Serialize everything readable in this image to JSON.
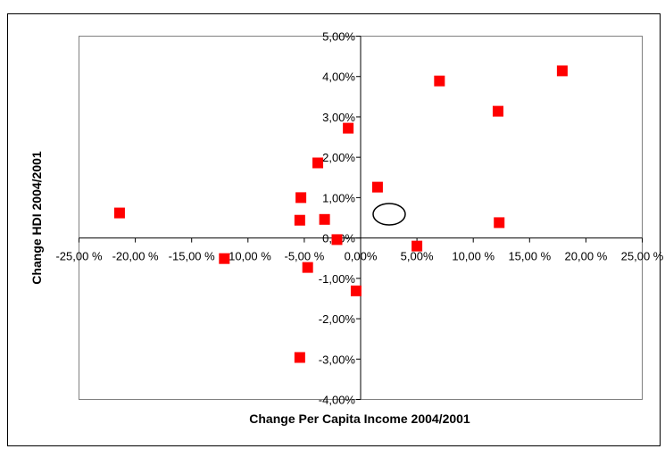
{
  "chart_data": {
    "type": "scatter",
    "x_label": "Change Per Capita Income 2004/2001",
    "y_label": "Change HDI 2004/2001",
    "color": "#ff0000",
    "x": [
      -21.4,
      -12.1,
      -5.4,
      -5.4,
      -5.3,
      -4.7,
      -3.8,
      -3.2,
      -2.1,
      -1.1,
      -0.4,
      1.5,
      5.0,
      7.0,
      12.2,
      12.3,
      17.9
    ],
    "values": [
      0.62,
      -0.51,
      -2.96,
      0.44,
      1.0,
      -0.73,
      1.86,
      0.46,
      -0.04,
      2.72,
      -1.31,
      1.26,
      -0.2,
      3.89,
      3.14,
      0.38,
      4.14
    ],
    "xlim": [
      -25,
      25
    ],
    "xticks": [
      {
        "value": -25,
        "label": "-25,00 %"
      },
      {
        "value": -20,
        "label": "-20,00 %"
      },
      {
        "value": -15,
        "label": "-15,00 %"
      },
      {
        "value": -10,
        "label": "-10,00 %"
      },
      {
        "value": -5,
        "label": "-5,00 %"
      },
      {
        "value": 0,
        "label": "0,00%"
      },
      {
        "value": 5,
        "label": "5,00%"
      },
      {
        "value": 10,
        "label": "10,00 %"
      },
      {
        "value": 15,
        "label": "15,00 %"
      },
      {
        "value": 20,
        "label": "20,00 %"
      },
      {
        "value": 25,
        "label": "25,00 %"
      }
    ],
    "ylim": [
      -4,
      5
    ],
    "yticks": [
      {
        "value": -4,
        "label": "-4,00%"
      },
      {
        "value": -3,
        "label": "-3,00%"
      },
      {
        "value": -2,
        "label": "-2,00%"
      },
      {
        "value": -1,
        "label": "-1,00%"
      },
      {
        "value": 0,
        "label": "0,00%"
      },
      {
        "value": 1,
        "label": "1,00%"
      },
      {
        "value": 2,
        "label": "2,00%"
      },
      {
        "value": 3,
        "label": "3,00%"
      },
      {
        "value": 4,
        "label": "4,00%"
      },
      {
        "value": 5,
        "label": "5,00%"
      }
    ]
  }
}
